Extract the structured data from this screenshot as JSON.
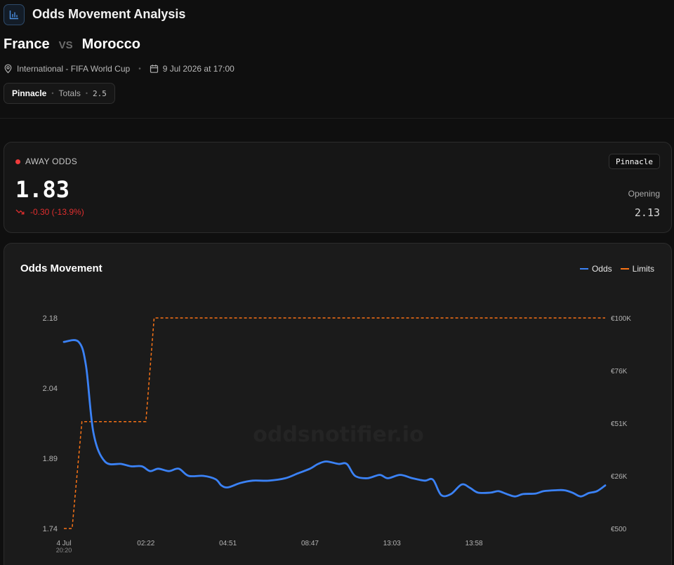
{
  "header": {
    "title": "Odds Movement Analysis",
    "icon": "bar-chart-icon"
  },
  "match": {
    "home_team": "France",
    "vs": "VS",
    "away_team": "Morocco",
    "competition": "International - FIFA World Cup",
    "kickoff": "9 Jul 2026 at 17:00"
  },
  "market": {
    "bookmaker": "Pinnacle",
    "type": "Totals",
    "line": "2.5"
  },
  "odds_card": {
    "label": "AWAY ODDS",
    "current": "1.83",
    "change": "-0.30 (-13.9%)",
    "bookmaker": "Pinnacle",
    "opening_label": "Opening",
    "opening": "2.13",
    "colors": {
      "negative": "#e02e2e",
      "dot": "#ef3b3b"
    }
  },
  "chart_data": {
    "type": "line",
    "title": "Odds Movement",
    "watermark": "oddsnotifier.io",
    "colors": {
      "odds": "#3b82f6",
      "limits": "#f97316"
    },
    "series": [
      {
        "name": "Odds",
        "axis": "left",
        "points": [
          [
            0,
            2.13
          ],
          [
            0.18,
            2.13
          ],
          [
            0.27,
            2.08
          ],
          [
            0.36,
            1.94
          ],
          [
            0.5,
            1.88
          ],
          [
            0.7,
            1.875
          ],
          [
            0.82,
            1.87
          ],
          [
            0.95,
            1.87
          ],
          [
            1.05,
            1.86
          ],
          [
            1.15,
            1.865
          ],
          [
            1.28,
            1.86
          ],
          [
            1.4,
            1.865
          ],
          [
            1.52,
            1.85
          ],
          [
            1.7,
            1.85
          ],
          [
            1.85,
            1.843
          ],
          [
            1.92,
            1.83
          ],
          [
            2.0,
            1.826
          ],
          [
            2.15,
            1.835
          ],
          [
            2.3,
            1.84
          ],
          [
            2.5,
            1.84
          ],
          [
            2.7,
            1.845
          ],
          [
            2.85,
            1.855
          ],
          [
            3.0,
            1.865
          ],
          [
            3.1,
            1.875
          ],
          [
            3.2,
            1.88
          ],
          [
            3.35,
            1.875
          ],
          [
            3.45,
            1.875
          ],
          [
            3.55,
            1.85
          ],
          [
            3.7,
            1.845
          ],
          [
            3.85,
            1.852
          ],
          [
            3.95,
            1.845
          ],
          [
            4.1,
            1.852
          ],
          [
            4.25,
            1.845
          ],
          [
            4.4,
            1.84
          ],
          [
            4.5,
            1.842
          ],
          [
            4.6,
            1.81
          ],
          [
            4.72,
            1.812
          ],
          [
            4.85,
            1.832
          ],
          [
            4.95,
            1.825
          ],
          [
            5.05,
            1.815
          ],
          [
            5.2,
            1.815
          ],
          [
            5.3,
            1.818
          ],
          [
            5.4,
            1.812
          ],
          [
            5.5,
            1.807
          ],
          [
            5.6,
            1.812
          ],
          [
            5.75,
            1.813
          ],
          [
            5.85,
            1.818
          ],
          [
            6.0,
            1.82
          ],
          [
            6.1,
            1.82
          ],
          [
            6.2,
            1.815
          ],
          [
            6.3,
            1.807
          ],
          [
            6.4,
            1.814
          ],
          [
            6.5,
            1.818
          ],
          [
            6.6,
            1.83
          ]
        ]
      },
      {
        "name": "Limits",
        "axis": "right",
        "step": true,
        "points": [
          [
            0,
            500
          ],
          [
            0.1,
            500
          ],
          [
            0.22,
            51000
          ],
          [
            1.0,
            51000
          ],
          [
            1.1,
            100000
          ],
          [
            6.6,
            100000
          ]
        ]
      }
    ],
    "y_left": {
      "ticks": [
        "2.18",
        "2.04",
        "1.89",
        "1.74"
      ],
      "range": [
        1.74,
        2.18
      ]
    },
    "y_right": {
      "ticks": [
        "€100K",
        "€76K",
        "€51K",
        "€26K",
        "€500"
      ],
      "range": [
        500,
        100000
      ]
    },
    "x_axis": {
      "ticks": [
        {
          "label": "4 Jul",
          "sublabel": "20:20",
          "at": 0
        },
        {
          "label": "02:22",
          "at": 1.0
        },
        {
          "label": "04:51",
          "at": 2.0
        },
        {
          "label": "08:47",
          "at": 3.0
        },
        {
          "label": "13:03",
          "at": 4.0
        },
        {
          "label": "13:58",
          "at": 5.0
        }
      ],
      "range": [
        0,
        6.6
      ]
    },
    "legend": {
      "position": "top-right",
      "items": [
        "Odds",
        "Limits"
      ]
    },
    "grid": false
  }
}
